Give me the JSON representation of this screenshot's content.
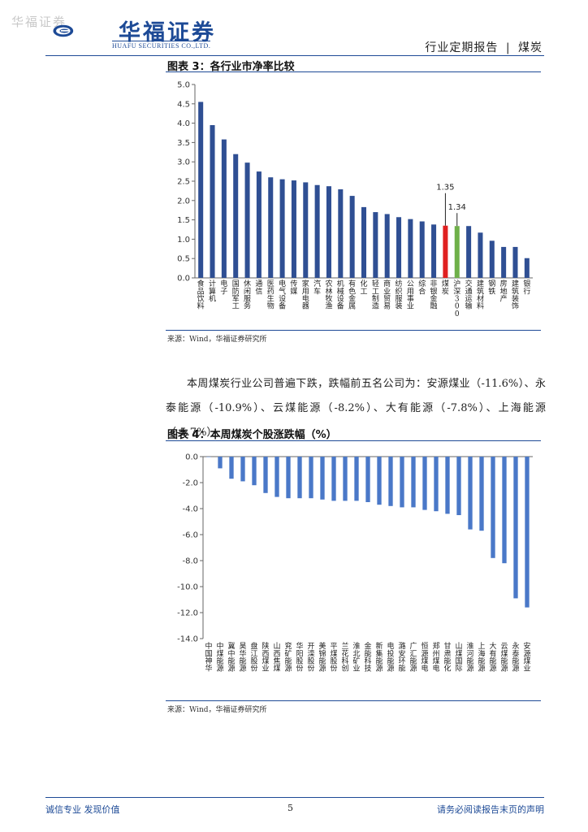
{
  "watermark": "华福证券",
  "header": {
    "logo_cn": "华福证券",
    "logo_en": "HUAFU SECURITIES CO.,LTD.",
    "report_type": "行业定期报告",
    "separator": "|",
    "sector": "煤炭"
  },
  "figure3": {
    "title": "图表 3：各行业市净率比较",
    "source": "来源：Wind，华福证券研究所",
    "chart_data": {
      "type": "bar",
      "categories": [
        "食品饮料",
        "计算机",
        "电子",
        "国防军工",
        "休闲服务",
        "通信",
        "医药生物",
        "电气设备",
        "传媒",
        "家用电器",
        "汽车",
        "农林牧渔",
        "机械设备",
        "有色金属",
        "化工",
        "轻工制造",
        "商业贸易",
        "纺织服装",
        "公用事业",
        "综合",
        "非银金融",
        "煤炭",
        "沪深300",
        "交通运输",
        "建筑材料",
        "钢铁",
        "房地产",
        "建筑装饰",
        "银行"
      ],
      "values": [
        4.55,
        3.95,
        3.58,
        3.2,
        2.98,
        2.75,
        2.6,
        2.55,
        2.52,
        2.47,
        2.4,
        2.37,
        2.29,
        2.12,
        1.83,
        1.7,
        1.65,
        1.57,
        1.52,
        1.46,
        1.38,
        1.35,
        1.34,
        1.34,
        1.17,
        0.96,
        0.8,
        0.8,
        0.51
      ],
      "ylim": [
        0,
        5.0
      ],
      "yticks": [
        "0.0",
        "0.5",
        "1.0",
        "1.5",
        "2.0",
        "2.5",
        "3.0",
        "3.5",
        "4.0",
        "4.5",
        "5.0"
      ],
      "highlight": [
        {
          "index": 21,
          "color": "#e02020",
          "label": "1.35"
        },
        {
          "index": 22,
          "color": "#6fb04a",
          "label": "1.34"
        }
      ],
      "bar_color": "#2f4f93",
      "grid": false
    }
  },
  "paragraph": "本周煤炭行业公司普遍下跌，跌幅前五名公司为：安源煤业（-11.6%）、永泰能源（-10.9%）、云煤能源（-8.2%）、大有能源（-7.8%）、上海能源（-5.7%）。",
  "figure4": {
    "title": "图表 4：本周煤炭个股涨跌幅（%）",
    "source": "来源：Wind，华福证券研究所",
    "chart_data": {
      "type": "bar",
      "categories": [
        "中国神华",
        "中煤能源",
        "冀中能源",
        "昊华能源",
        "盘江股份",
        "陕西煤业",
        "山西焦煤",
        "兖矿能源",
        "华阳股份",
        "开滦股份",
        "美锦能源",
        "平煤股份",
        "兰花科创",
        "淮北矿业",
        "金能科技",
        "新集能源",
        "电投能源",
        "潞安环能",
        "广汇能源",
        "恒源煤电",
        "郑州煤电",
        "甘肃能化",
        "山煤国际",
        "淮河能源",
        "上海能源",
        "大有能源",
        "云煤能源",
        "永泰能源",
        "安源煤业"
      ],
      "values": [
        0.0,
        -0.9,
        -1.7,
        -1.9,
        -2.2,
        -2.8,
        -3.1,
        -3.2,
        -3.2,
        -3.2,
        -3.3,
        -3.4,
        -3.4,
        -3.4,
        -3.5,
        -3.7,
        -3.8,
        -3.9,
        -3.9,
        -4.1,
        -4.2,
        -4.4,
        -4.5,
        -5.6,
        -5.7,
        -7.8,
        -8.2,
        -10.9,
        -11.6
      ],
      "ylim": [
        -14.0,
        0.0
      ],
      "yticks": [
        "0.0",
        "-2.0",
        "-4.0",
        "-6.0",
        "-8.0",
        "-10.0",
        "-12.0",
        "-14.0"
      ],
      "bar_color": "#4a78c8",
      "grid": false
    }
  },
  "footer": {
    "left": "诚信专业  发现价值",
    "page": "5",
    "right": "请务必阅读报告末页的声明"
  }
}
